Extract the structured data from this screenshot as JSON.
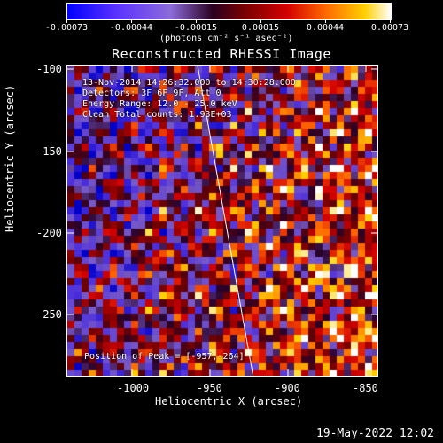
{
  "colorbar": {
    "tick_labels": [
      "-0.00073",
      "-0.00044",
      "-0.00015",
      "0.00015",
      "0.00044",
      "0.00073"
    ],
    "units": "(photons cm⁻² s⁻¹ asec⁻²)"
  },
  "title": "Reconstructed RHESSI Image",
  "annotations": {
    "time_range": "13-Nov-2014 14:26:32.000 to 14:30:28.000",
    "detectors": "Detectors: 3F 6F 9F, Att 0",
    "energy": "Energy Range: 12.0 - 25.0 keV",
    "clean": "Clean    Total counts: 1.93E+03",
    "peak": "Position of Peak = [-957,-264]"
  },
  "axes": {
    "x_label": "Heliocentric X (arcsec)",
    "y_label": "Heliocentric Y (arcsec)",
    "x_ticks": [
      "-1000",
      "-950",
      "-900",
      "-850"
    ],
    "y_ticks": [
      "-100",
      "-150",
      "-200",
      "-250"
    ]
  },
  "footer": {
    "date": "19-May-2022 12:02"
  },
  "colors": {
    "background": "#000000",
    "text": "#ffffff"
  }
}
